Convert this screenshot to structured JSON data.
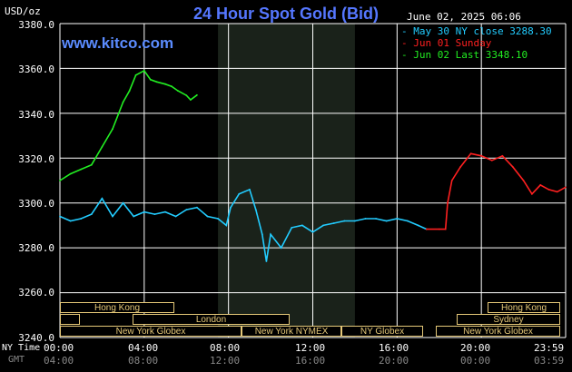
{
  "title": "24 Hour Spot Gold (Bid)",
  "units": "USD/oz",
  "datestamp": "June 02, 2025 06:06",
  "watermark": "www.kitco.com",
  "legend": [
    {
      "label": "May 30 NY close 3288.30",
      "color": "#22ccff"
    },
    {
      "label": "Jun 01 Sunday",
      "color": "#ff2020"
    },
    {
      "label": "Jun 02 Last 3348.10",
      "color": "#22ee22"
    }
  ],
  "axis": {
    "y_ticks": [
      "3380.0",
      "3360.0",
      "3340.0",
      "3320.0",
      "3300.0",
      "3280.0",
      "3260.0",
      "3240.0"
    ],
    "x_ticks_ny": [
      "00:00",
      "04:00",
      "08:00",
      "12:00",
      "16:00",
      "20:00",
      "23:59"
    ],
    "x_ticks_gmt": [
      "04:00",
      "08:00",
      "12:00",
      "16:00",
      "20:00",
      "00:00",
      "03:59"
    ],
    "row_label_ny": "NY Time",
    "row_label_gmt": "GMT"
  },
  "markets_left": [
    "Hong Kong",
    "London",
    "New York Globex",
    "New York NYMEX",
    "NY Globex"
  ],
  "markets_right": [
    "Hong Kong",
    "Sydney",
    "New York Globex"
  ],
  "colors": {
    "grid": "#ffffff",
    "shade": "#1a221a",
    "market": "#e5c878"
  },
  "chart_data": {
    "type": "line",
    "title": "24 Hour Spot Gold (Bid)",
    "ylabel": "USD/oz",
    "ylim": [
      3240,
      3380
    ],
    "xlim_hours": [
      0,
      24
    ],
    "shaded_region_hours": [
      7.5,
      14.0
    ],
    "series": [
      {
        "name": "May 30 NY close 3288.30",
        "color": "#22ccff",
        "x": [
          0,
          0.5,
          1,
          1.5,
          2,
          2.5,
          3,
          3.5,
          4,
          4.5,
          5,
          5.5,
          6,
          6.5,
          7,
          7.5,
          7.9,
          8.1,
          8.5,
          9,
          9.3,
          9.6,
          9.8,
          10,
          10.5,
          11,
          11.5,
          12,
          12.5,
          13,
          13.5,
          14,
          14.5,
          15,
          15.5,
          16,
          16.5,
          17,
          17.4
        ],
        "values": [
          3294,
          3292,
          3293,
          3295,
          3302,
          3294,
          3300,
          3294,
          3296,
          3295,
          3296,
          3294,
          3297,
          3298,
          3294,
          3293,
          3290,
          3298,
          3304,
          3306,
          3297,
          3286,
          3274,
          3286,
          3280,
          3289,
          3290,
          3287,
          3290,
          3291,
          3292,
          3292,
          3293,
          3293,
          3292,
          3293,
          3292,
          3290,
          3288.3
        ]
      },
      {
        "name": "Jun 01 Sunday",
        "color": "#ff2020",
        "x": [
          17.4,
          18,
          18.3,
          18.4,
          18.6,
          19,
          19.5,
          20,
          20.5,
          21,
          21.5,
          22,
          22.4,
          22.8,
          23.2,
          23.6,
          23.99
        ],
        "values": [
          3288.3,
          3288.3,
          3288.3,
          3300,
          3310,
          3316,
          3322,
          3321,
          3319,
          3321,
          3316,
          3310,
          3304,
          3308,
          3306,
          3305,
          3307
        ]
      },
      {
        "name": "Jun 02 Last 3348.10",
        "color": "#22ee22",
        "x": [
          0,
          0.5,
          1,
          1.5,
          2,
          2.5,
          3,
          3.3,
          3.6,
          4,
          4.3,
          4.6,
          5,
          5.3,
          5.6,
          6,
          6.2,
          6.5
        ],
        "values": [
          3310,
          3313,
          3315,
          3317,
          3325,
          3333,
          3345,
          3350,
          3357,
          3359,
          3355,
          3354,
          3353,
          3352,
          3350,
          3348,
          3346,
          3348.1
        ]
      }
    ]
  }
}
